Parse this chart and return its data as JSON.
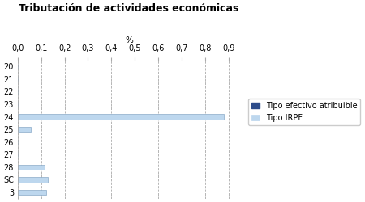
{
  "title": "Tributación de actividades económicas",
  "xlabel": "%",
  "categories": [
    "20",
    "21",
    "22",
    "23",
    "24",
    "25",
    "26",
    "27",
    "28",
    "SC",
    "3"
  ],
  "series": [
    {
      "name": "Tipo efectivo atribuible",
      "color": "#2E4D8B",
      "values": [
        0.0,
        0.0,
        0.0,
        0.0,
        0.0,
        0.0,
        0.0,
        0.0,
        0.0,
        0.0,
        0.0
      ]
    },
    {
      "name": "Tipo IRPF",
      "color": "#BDD7EE",
      "values": [
        0.0,
        0.0,
        0.0,
        0.0,
        0.88,
        0.055,
        0.0,
        0.0,
        0.115,
        0.13,
        0.12
      ]
    }
  ],
  "xlim": [
    0.0,
    0.95
  ],
  "xticks": [
    0.0,
    0.1,
    0.2,
    0.3,
    0.4,
    0.5,
    0.6,
    0.7,
    0.8,
    0.9
  ],
  "xtick_labels": [
    "0,0",
    "0,1",
    "0,2",
    "0,3",
    "0,4",
    "0,5",
    "0,6",
    "0,7",
    "0,8",
    "0,9"
  ],
  "background_color": "#FFFFFF",
  "grid_color": "#AAAAAA",
  "title_fontsize": 9,
  "legend_fontsize": 7,
  "tick_fontsize": 7
}
